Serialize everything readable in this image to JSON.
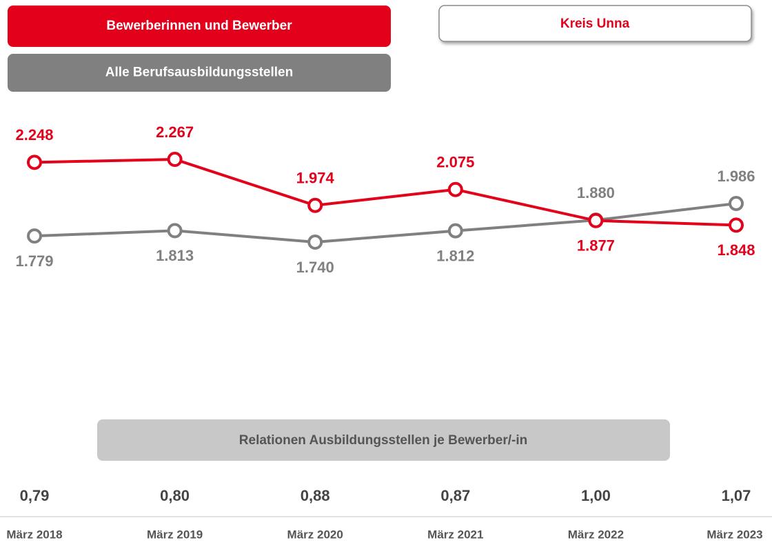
{
  "chart_data": {
    "type": "line",
    "title": "Kreis Unna",
    "categories": [
      "März 2018",
      "März 2019",
      "März 2020",
      "März 2021",
      "März 2022",
      "März 2023"
    ],
    "series": [
      {
        "name": "Bewerberinnen und Bewerber",
        "color": "#e2001a",
        "values": [
          2248,
          2267,
          1974,
          2075,
          1877,
          1848
        ],
        "value_labels": [
          "2.248",
          "2.267",
          "1.974",
          "2.075",
          "1.877",
          "1.848"
        ]
      },
      {
        "name": "Alle Berufsausbildungsstellen",
        "color": "#808080",
        "values": [
          1779,
          1813,
          1740,
          1812,
          1880,
          1986
        ],
        "value_labels": [
          "1.779",
          "1.813",
          "1.740",
          "1.812",
          "1.880",
          "1.986"
        ]
      }
    ],
    "relations": {
      "title": "Relationen Ausbildungsstellen je Bewerber/-in",
      "values": [
        0.79,
        0.8,
        0.88,
        0.87,
        1.0,
        1.07
      ],
      "value_labels": [
        "0,79",
        "0,80",
        "0,88",
        "0,87",
        "1,00",
        "1,07"
      ]
    }
  }
}
